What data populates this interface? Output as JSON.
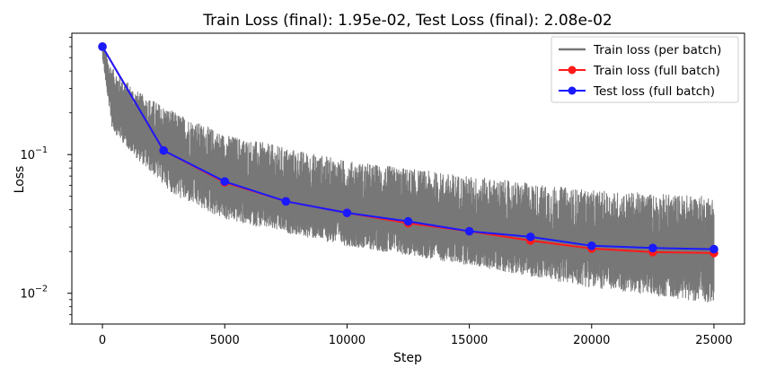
{
  "chart_data": {
    "type": "line",
    "title": "Train Loss (final): 1.95e-02, Test Loss (final): 2.08e-02",
    "xlabel": "Step",
    "ylabel": "Loss",
    "yscale": "log",
    "xlim": [
      -1250,
      26250
    ],
    "ylim": [
      0.006,
      0.75
    ],
    "x_ticks": [
      0,
      5000,
      10000,
      15000,
      20000,
      25000
    ],
    "x_tick_labels": [
      "0",
      "5000",
      "10000",
      "15000",
      "20000",
      "25000"
    ],
    "y_ticks": [
      0.01,
      0.1
    ],
    "y_tick_labels": [
      {
        "base": "10",
        "exp": "−2"
      },
      {
        "base": "10",
        "exp": "−1"
      }
    ],
    "legend_position": "upper right",
    "series": [
      {
        "name": "Train loss (per batch)",
        "color": "#777777",
        "marker": false,
        "style": "noisy-band",
        "x_range": [
          0,
          25000
        ],
        "center": [
          [
            0,
            0.6
          ],
          [
            200,
            0.3
          ],
          [
            1000,
            0.17
          ],
          [
            2500,
            0.107
          ],
          [
            5000,
            0.063
          ],
          [
            7500,
            0.046
          ],
          [
            10000,
            0.038
          ],
          [
            12500,
            0.032
          ],
          [
            15000,
            0.028
          ],
          [
            17500,
            0.024
          ],
          [
            20000,
            0.021
          ],
          [
            22500,
            0.0198
          ],
          [
            25000,
            0.0195
          ]
        ],
        "upper": [
          [
            0,
            0.65
          ],
          [
            400,
            0.42
          ],
          [
            1500,
            0.28
          ],
          [
            3000,
            0.2
          ],
          [
            5000,
            0.14
          ],
          [
            10000,
            0.09
          ],
          [
            15000,
            0.07
          ],
          [
            20000,
            0.055
          ],
          [
            25000,
            0.05
          ]
        ],
        "lower": [
          [
            0,
            0.5
          ],
          [
            400,
            0.15
          ],
          [
            1500,
            0.09
          ],
          [
            3000,
            0.05
          ],
          [
            5000,
            0.034
          ],
          [
            10000,
            0.022
          ],
          [
            15000,
            0.016
          ],
          [
            20000,
            0.011
          ],
          [
            25000,
            0.0085
          ]
        ]
      },
      {
        "name": "Train loss (full batch)",
        "color": "#ff1a1a",
        "marker": true,
        "x": [
          0,
          2500,
          5000,
          7500,
          10000,
          12500,
          15000,
          17500,
          20000,
          22500,
          25000
        ],
        "values": [
          0.6,
          0.107,
          0.063,
          0.046,
          0.038,
          0.032,
          0.028,
          0.024,
          0.021,
          0.0198,
          0.0195
        ]
      },
      {
        "name": "Test loss (full batch)",
        "color": "#1a1aff",
        "marker": true,
        "x": [
          0,
          2500,
          5000,
          7500,
          10000,
          12500,
          15000,
          17500,
          20000,
          22500,
          25000
        ],
        "values": [
          0.6,
          0.107,
          0.064,
          0.046,
          0.038,
          0.033,
          0.028,
          0.0255,
          0.022,
          0.0212,
          0.0208
        ]
      }
    ]
  }
}
